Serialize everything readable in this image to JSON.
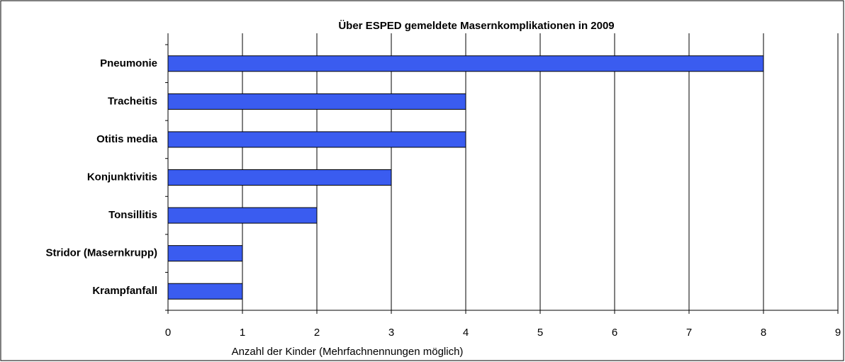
{
  "chart_data": {
    "type": "bar",
    "orientation": "horizontal",
    "title": "Über ESPED gemeldete Masernkomplikationen in 2009",
    "x_label": "Anzahl der Kinder (Mehrfachnennungen möglich)",
    "categories": [
      "Pneumonie",
      "Tracheitis",
      "Otitis media",
      "Konjunktivitis",
      "Tonsillitis",
      "Stridor (Masernkrupp)",
      "Krampfanfall"
    ],
    "values": [
      8,
      4,
      4,
      3,
      2,
      1,
      1
    ],
    "color": "#3a5cf0",
    "xlim": [
      0,
      9
    ],
    "xticks": [
      0,
      1,
      2,
      3,
      4,
      5,
      6,
      7,
      8,
      9
    ],
    "grid": true
  }
}
